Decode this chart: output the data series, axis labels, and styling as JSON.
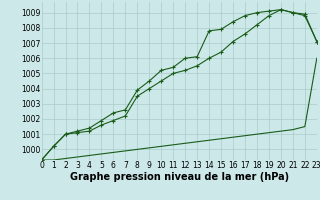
{
  "background_color": "#cce8e8",
  "line_color": "#1a5c1a",
  "grid_color": "#aacccc",
  "xlabel": "Graphe pression niveau de la mer (hPa)",
  "x_ticks": [
    0,
    1,
    2,
    3,
    4,
    5,
    6,
    7,
    8,
    9,
    10,
    11,
    12,
    13,
    14,
    15,
    16,
    17,
    18,
    19,
    20,
    21,
    22,
    23
  ],
  "y_ticks": [
    1000,
    1001,
    1002,
    1003,
    1004,
    1005,
    1006,
    1007,
    1008,
    1009
  ],
  "ylim": [
    999.3,
    1009.7
  ],
  "xlim": [
    0,
    23
  ],
  "y_top": [
    999.3,
    1000.2,
    1001.0,
    1001.2,
    1001.4,
    1001.9,
    1002.4,
    1002.6,
    1003.9,
    1004.5,
    1005.2,
    1005.4,
    1006.0,
    1006.1,
    1007.8,
    1007.9,
    1008.4,
    1008.8,
    1009.0,
    1009.1,
    1009.2,
    1009.0,
    1008.9,
    1007.1
  ],
  "y_mid": [
    999.3,
    1000.2,
    1001.0,
    1001.1,
    1001.2,
    1001.6,
    1001.9,
    1002.2,
    1003.5,
    1004.0,
    1004.5,
    1005.0,
    1005.2,
    1005.5,
    1006.0,
    1006.4,
    1007.1,
    1007.6,
    1008.2,
    1008.8,
    1009.2,
    1009.0,
    1008.8,
    1007.1
  ],
  "y_bot": [
    999.3,
    999.3,
    999.4,
    999.5,
    999.6,
    999.7,
    999.8,
    999.9,
    1000.0,
    1000.1,
    1000.2,
    1000.3,
    1000.4,
    1000.5,
    1000.6,
    1000.7,
    1000.8,
    1000.9,
    1001.0,
    1001.1,
    1001.2,
    1001.3,
    1001.5,
    1006.0
  ],
  "tick_fontsize": 5.5,
  "label_fontsize": 7.0
}
